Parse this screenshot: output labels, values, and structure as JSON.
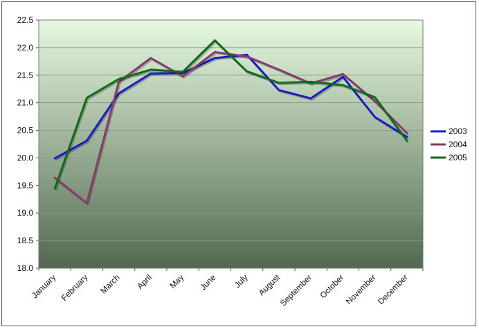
{
  "chart_data": {
    "type": "line",
    "categories": [
      "January",
      "February",
      "March",
      "April",
      "May",
      "June",
      "July",
      "August",
      "September",
      "October",
      "November",
      "December"
    ],
    "series": [
      {
        "name": "2003",
        "color": "#1a1ac8",
        "values": [
          19.99,
          20.31,
          21.17,
          21.53,
          21.54,
          21.81,
          21.87,
          21.23,
          21.08,
          21.47,
          20.74,
          20.38
        ]
      },
      {
        "name": "2004",
        "color": "#8a3a6a",
        "values": [
          19.64,
          19.18,
          21.38,
          21.81,
          21.48,
          21.92,
          21.84,
          21.6,
          21.35,
          21.52,
          21.03,
          20.45
        ]
      },
      {
        "name": "2005",
        "color": "#0f6a1a",
        "values": [
          19.44,
          21.09,
          21.43,
          21.6,
          21.56,
          22.13,
          21.57,
          21.36,
          21.38,
          21.32,
          21.1,
          20.31
        ]
      }
    ],
    "y_ticks": [
      "18.0",
      "18.5",
      "19.0",
      "19.5",
      "20.0",
      "20.5",
      "21.0",
      "21.5",
      "22.0",
      "22.5"
    ],
    "ylim": [
      18.0,
      22.5
    ],
    "grid": true,
    "legend": "right",
    "title": "",
    "xlabel": "",
    "ylabel": "",
    "colors": {
      "plot_top": "#e6fae1",
      "plot_bottom": "#52694f",
      "gridline": "#8a9a86"
    }
  }
}
